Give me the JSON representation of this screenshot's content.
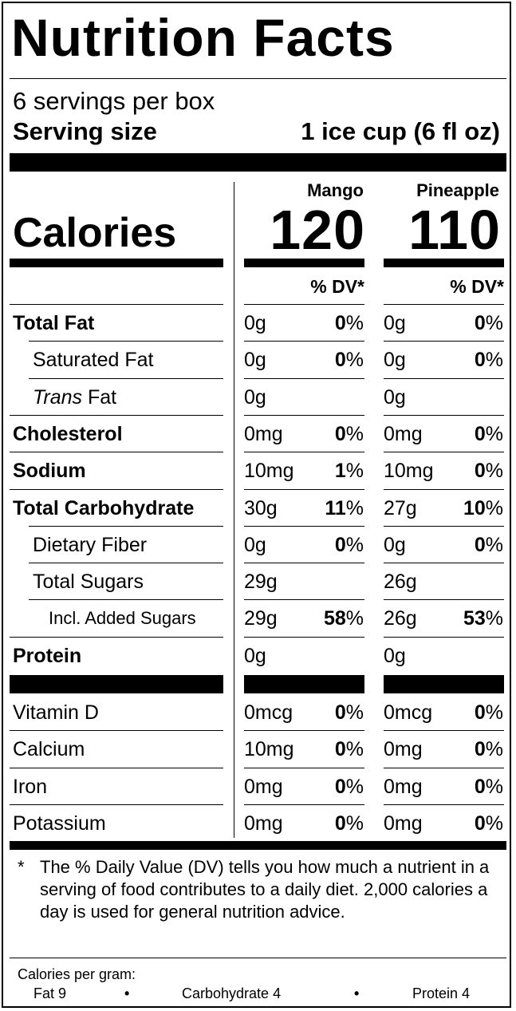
{
  "title": "Nutrition Facts",
  "servings_per_container": "6 servings per box",
  "serving_size_label": "Serving size",
  "serving_size_value": "1 ice cup (6 fl oz)",
  "calories_label": "Calories",
  "columns": [
    {
      "name": "Mango",
      "calories": "120",
      "dv_header": "% DV*"
    },
    {
      "name": "Pineapple",
      "calories": "110",
      "dv_header": "% DV*"
    }
  ],
  "nutrients": [
    {
      "label": "Total Fat",
      "bold": true,
      "indent": 0,
      "values": [
        {
          "amount": "0g",
          "dv": "0%"
        },
        {
          "amount": "0g",
          "dv": "0%"
        }
      ]
    },
    {
      "label": "Saturated Fat",
      "bold": false,
      "indent": 1,
      "values": [
        {
          "amount": "0g",
          "dv": "0%"
        },
        {
          "amount": "0g",
          "dv": "0%"
        }
      ]
    },
    {
      "label_italic": "Trans",
      "label": " Fat",
      "bold": false,
      "indent": 1,
      "values": [
        {
          "amount": "0g",
          "dv": ""
        },
        {
          "amount": "0g",
          "dv": ""
        }
      ]
    },
    {
      "label": "Cholesterol",
      "bold": true,
      "indent": 0,
      "values": [
        {
          "amount": "0mg",
          "dv": "0%"
        },
        {
          "amount": "0mg",
          "dv": "0%"
        }
      ]
    },
    {
      "label": "Sodium",
      "bold": true,
      "indent": 0,
      "values": [
        {
          "amount": "10mg",
          "dv": "1%"
        },
        {
          "amount": "10mg",
          "dv": "0%"
        }
      ]
    },
    {
      "label": "Total Carbohydrate",
      "bold": true,
      "indent": 0,
      "values": [
        {
          "amount": "30g",
          "dv": "11%"
        },
        {
          "amount": "27g",
          "dv": "10%"
        }
      ]
    },
    {
      "label": "Dietary Fiber",
      "bold": false,
      "indent": 1,
      "values": [
        {
          "amount": "0g",
          "dv": "0%"
        },
        {
          "amount": "0g",
          "dv": "0%"
        }
      ]
    },
    {
      "label": "Total Sugars",
      "bold": false,
      "indent": 1,
      "values": [
        {
          "amount": "29g",
          "dv": ""
        },
        {
          "amount": "26g",
          "dv": ""
        }
      ]
    },
    {
      "label": "Incl. Added Sugars",
      "bold": false,
      "indent": 2,
      "values": [
        {
          "amount": "29g",
          "dv": "58%"
        },
        {
          "amount": "26g",
          "dv": "53%"
        }
      ]
    },
    {
      "label": "Protein",
      "bold": true,
      "indent": 0,
      "values": [
        {
          "amount": "0g",
          "dv": ""
        },
        {
          "amount": "0g",
          "dv": ""
        }
      ]
    }
  ],
  "vitamins": [
    {
      "label": "Vitamin D",
      "values": [
        {
          "amount": "0mcg",
          "dv": "0%"
        },
        {
          "amount": "0mcg",
          "dv": "0%"
        }
      ]
    },
    {
      "label": "Calcium",
      "values": [
        {
          "amount": "10mg",
          "dv": "0%"
        },
        {
          "amount": "0mg",
          "dv": "0%"
        }
      ]
    },
    {
      "label": "Iron",
      "values": [
        {
          "amount": "0mg",
          "dv": "0%"
        },
        {
          "amount": "0mg",
          "dv": "0%"
        }
      ]
    },
    {
      "label": "Potassium",
      "values": [
        {
          "amount": "0mg",
          "dv": "0%"
        },
        {
          "amount": "0mg",
          "dv": "0%"
        }
      ]
    }
  ],
  "footnote_star": "*",
  "footnote": "The % Daily Value (DV) tells you how much a nutrient in a serving of food contributes to a daily diet. 2,000 calories a day is used for general nutrition advice.",
  "calories_per_gram": {
    "title": "Calories per gram:",
    "fat": "Fat 9",
    "carbohydrate": "Carbohydrate 4",
    "protein": "Protein 4",
    "separator": "•"
  }
}
